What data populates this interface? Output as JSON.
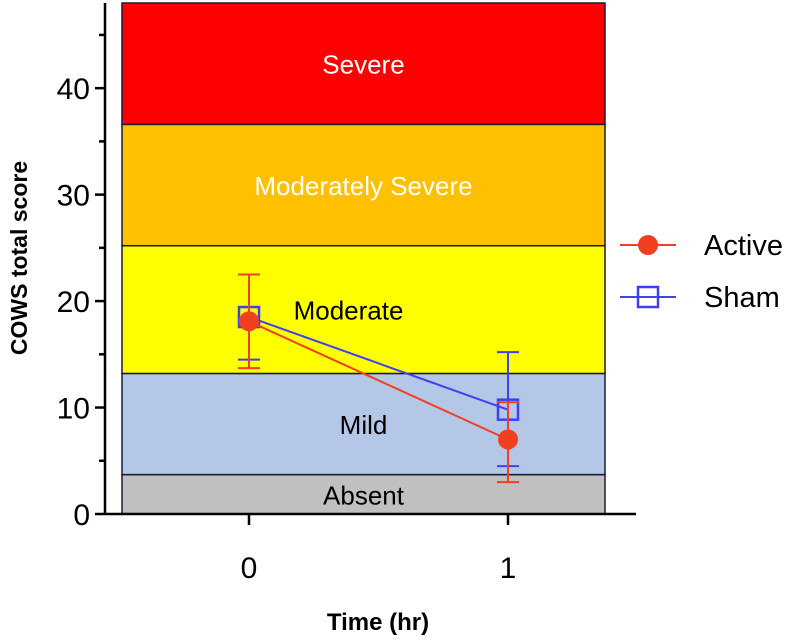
{
  "chart_data": {
    "type": "line",
    "xlabel": "Time (hr)",
    "ylabel": "COWS total score",
    "xlim": [
      -0.5,
      1.38
    ],
    "ylim": [
      0,
      48
    ],
    "x_ticks": [
      {
        "value": 0,
        "label": "0"
      },
      {
        "value": 1,
        "label": "1"
      }
    ],
    "y_ticks": [
      {
        "value": 0,
        "label": "0"
      },
      {
        "value": 10,
        "label": "10"
      },
      {
        "value": 20,
        "label": "20"
      },
      {
        "value": 30,
        "label": "30"
      },
      {
        "value": 40,
        "label": "40"
      }
    ],
    "bands": [
      {
        "label": "Absent",
        "from": 0,
        "to": 3.7,
        "color": "#c0c0c0",
        "text_color": "#000000"
      },
      {
        "label": "Mild",
        "from": 3.7,
        "to": 13.2,
        "color": "#b4c7e7",
        "text_color": "#000000"
      },
      {
        "label": "Moderate",
        "from": 13.2,
        "to": 25.2,
        "color": "#ffff00",
        "text_color": "#000000"
      },
      {
        "label": "Moderately Severe",
        "from": 25.2,
        "to": 36.6,
        "color": "#ffc000",
        "text_color": "#ffffff"
      },
      {
        "label": "Severe",
        "from": 36.6,
        "to": 48,
        "color": "#ff0000",
        "text_color": "#ffffff"
      }
    ],
    "series": [
      {
        "name": "Sham",
        "color": "#4040f0",
        "marker": "open-square",
        "x": [
          0,
          1
        ],
        "y": [
          18.5,
          9.8
        ],
        "err_low": [
          14.5,
          4.5
        ],
        "err_high": [
          22.5,
          15.2
        ]
      },
      {
        "name": "Active",
        "color": "#f04020",
        "marker": "filled-circle",
        "x": [
          0,
          1
        ],
        "y": [
          18.1,
          7.0
        ],
        "err_low": [
          13.7,
          3.0
        ],
        "err_high": [
          22.5,
          10.5
        ]
      }
    ],
    "legend": {
      "placement": "right",
      "entries": [
        "Active",
        "Sham"
      ]
    }
  }
}
